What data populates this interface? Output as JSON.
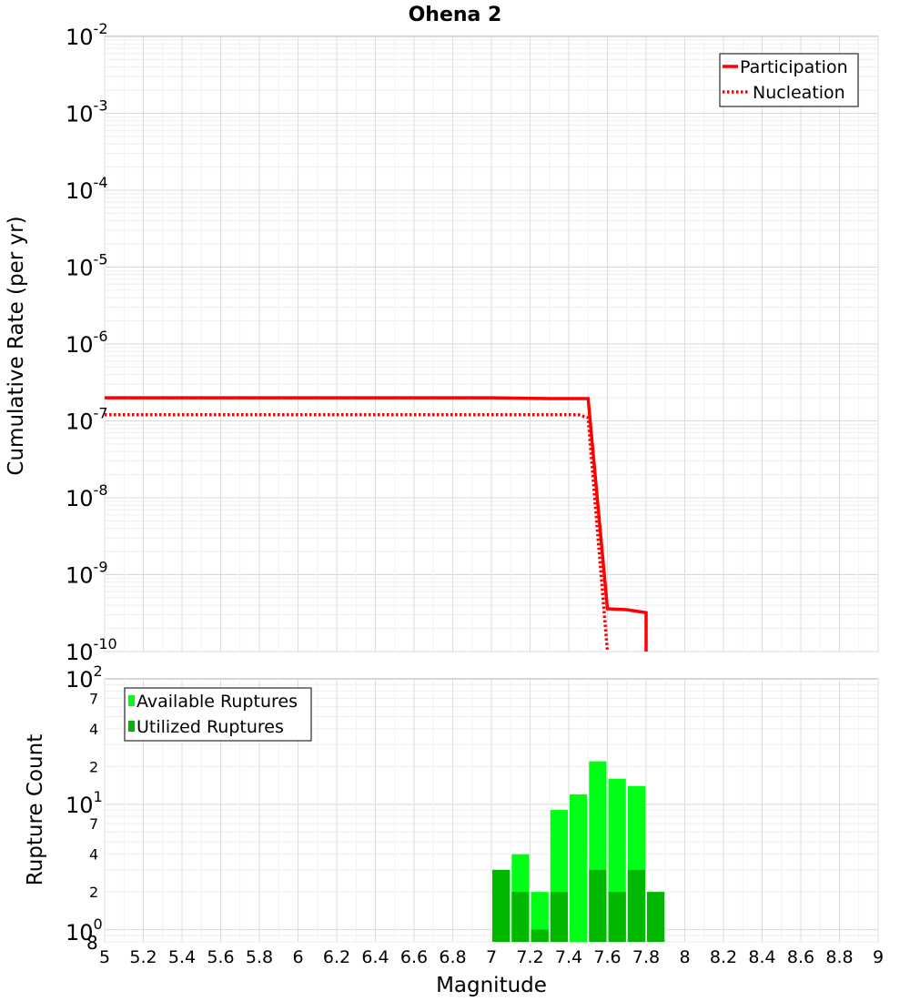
{
  "chart_data": [
    {
      "type": "line",
      "title": "Ohena 2",
      "xlabel": "",
      "ylabel": "Cumulative Rate (per yr)",
      "xlim": [
        5,
        9
      ],
      "ylim": [
        1e-10,
        0.01
      ],
      "yscale": "log",
      "grid": true,
      "legend": "top-right",
      "y_ticks": [
        {
          "base": "10",
          "exp": "-2"
        },
        {
          "base": "10",
          "exp": "-3"
        },
        {
          "base": "10",
          "exp": "-4"
        },
        {
          "base": "10",
          "exp": "-5"
        },
        {
          "base": "10",
          "exp": "-6"
        },
        {
          "base": "10",
          "exp": "-7"
        },
        {
          "base": "10",
          "exp": "-8"
        },
        {
          "base": "10",
          "exp": "-9"
        },
        {
          "base": "10",
          "exp": "-10"
        }
      ],
      "series": [
        {
          "name": "Participation",
          "color": "#ff0000",
          "style": "solid",
          "x": [
            5.0,
            7.0,
            7.3,
            7.45,
            7.5,
            7.6,
            7.7,
            7.8,
            7.8
          ],
          "y": [
            2e-07,
            2e-07,
            1.95e-07,
            1.95e-07,
            1.95e-07,
            3.6e-10,
            3.5e-10,
            3.2e-10,
            1e-10
          ]
        },
        {
          "name": "Nucleation",
          "color": "#ff0000",
          "style": "dotted",
          "x": [
            5.0,
            7.0,
            7.3,
            7.45,
            7.5,
            7.6
          ],
          "y": [
            1.2e-07,
            1.2e-07,
            1.2e-07,
            1.2e-07,
            1.1e-07,
            1e-10
          ]
        }
      ]
    },
    {
      "type": "bar",
      "xlabel": "Magnitude",
      "ylabel": "Rupture Count",
      "xlim": [
        5,
        9
      ],
      "ylim": [
        0.8,
        100
      ],
      "yscale": "log",
      "grid": true,
      "legend": "top-left",
      "x_ticks": [
        "5",
        "5.2",
        "5.4",
        "5.6",
        "5.8",
        "6",
        "6.2",
        "6.4",
        "6.6",
        "6.8",
        "7",
        "7.2",
        "7.4",
        "7.6",
        "7.8",
        "8",
        "8.2",
        "8.4",
        "8.6",
        "8.8",
        "9"
      ],
      "y_ticks": [
        {
          "value": 100,
          "base": "10",
          "exp": "2",
          "minor": ""
        },
        {
          "value": 70,
          "base": "",
          "exp": "",
          "minor": "7"
        },
        {
          "value": 40,
          "base": "",
          "exp": "",
          "minor": "4"
        },
        {
          "value": 20,
          "base": "",
          "exp": "",
          "minor": "2"
        },
        {
          "value": 10,
          "base": "10",
          "exp": "1",
          "minor": ""
        },
        {
          "value": 7,
          "base": "",
          "exp": "",
          "minor": "7"
        },
        {
          "value": 4,
          "base": "",
          "exp": "",
          "minor": "4"
        },
        {
          "value": 2,
          "base": "",
          "exp": "",
          "minor": "2"
        },
        {
          "value": 1,
          "base": "10",
          "exp": "0",
          "minor": ""
        },
        {
          "value": 0.8,
          "base": "",
          "exp": "",
          "minor": "8"
        }
      ],
      "categories": [
        "7.0",
        "7.1",
        "7.2",
        "7.3",
        "7.4",
        "7.5",
        "7.6",
        "7.7",
        "7.8"
      ],
      "bin_start": [
        7.0,
        7.1,
        7.2,
        7.3,
        7.4,
        7.5,
        7.6,
        7.7,
        7.8
      ],
      "bin_width": 0.1,
      "series": [
        {
          "name": "Available Ruptures",
          "color": "#00ff16",
          "values": [
            3,
            4,
            2,
            9,
            12,
            22,
            16,
            14,
            2
          ]
        },
        {
          "name": "Utilized Ruptures",
          "color": "#00b800",
          "values": [
            3,
            2,
            1,
            2,
            0,
            3,
            2,
            3,
            2
          ]
        }
      ]
    }
  ]
}
